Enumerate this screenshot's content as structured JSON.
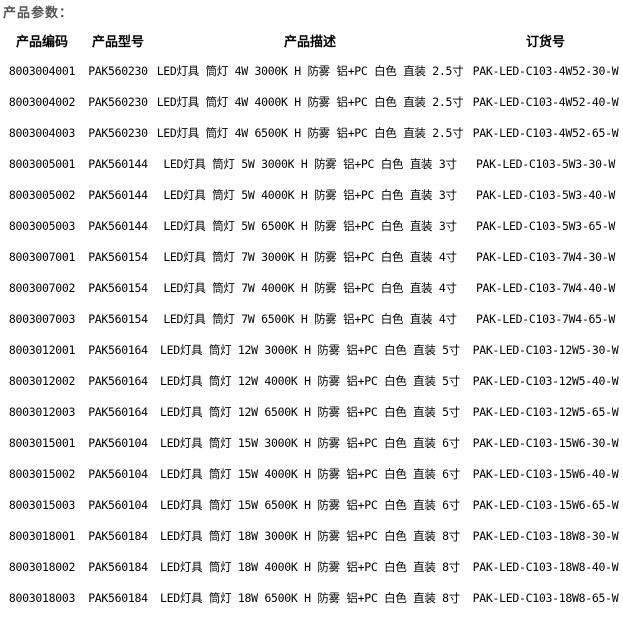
{
  "title": "产品参数：",
  "table": {
    "headers": {
      "code": "产品编码",
      "model": "产品型号",
      "description": "产品描述",
      "order_no": "订货号"
    },
    "rows": [
      {
        "code": "8003004001",
        "model": "PAK560230",
        "description": "LED灯具 筒灯 4W 3000K H 防雾 铝+PC 白色 直装 2.5寸",
        "order_no": "PAK-LED-C103-4W52-30-W"
      },
      {
        "code": "8003004002",
        "model": "PAK560230",
        "description": "LED灯具 筒灯 4W 4000K H 防雾 铝+PC 白色 直装 2.5寸",
        "order_no": "PAK-LED-C103-4W52-40-W"
      },
      {
        "code": "8003004003",
        "model": "PAK560230",
        "description": "LED灯具 筒灯 4W 6500K H 防雾 铝+PC 白色 直装 2.5寸",
        "order_no": "PAK-LED-C103-4W52-65-W"
      },
      {
        "code": "8003005001",
        "model": "PAK560144",
        "description": "LED灯具 筒灯 5W 3000K H 防雾 铝+PC 白色 直装 3寸",
        "order_no": "PAK-LED-C103-5W3-30-W"
      },
      {
        "code": "8003005002",
        "model": "PAK560144",
        "description": "LED灯具 筒灯 5W 4000K H 防雾 铝+PC 白色 直装 3寸",
        "order_no": "PAK-LED-C103-5W3-40-W"
      },
      {
        "code": "8003005003",
        "model": "PAK560144",
        "description": "LED灯具 筒灯 5W 6500K H 防雾 铝+PC 白色 直装 3寸",
        "order_no": "PAK-LED-C103-5W3-65-W"
      },
      {
        "code": "8003007001",
        "model": "PAK560154",
        "description": "LED灯具 筒灯 7W 3000K H 防雾 铝+PC 白色 直装 4寸",
        "order_no": "PAK-LED-C103-7W4-30-W"
      },
      {
        "code": "8003007002",
        "model": "PAK560154",
        "description": "LED灯具 筒灯 7W 4000K H 防雾 铝+PC 白色 直装 4寸",
        "order_no": "PAK-LED-C103-7W4-40-W"
      },
      {
        "code": "8003007003",
        "model": "PAK560154",
        "description": "LED灯具 筒灯 7W 6500K H 防雾 铝+PC 白色 直装 4寸",
        "order_no": "PAK-LED-C103-7W4-65-W"
      },
      {
        "code": "8003012001",
        "model": "PAK560164",
        "description": "LED灯具 筒灯 12W 3000K H 防雾 铝+PC 白色 直装 5寸",
        "order_no": "PAK-LED-C103-12W5-30-W"
      },
      {
        "code": "8003012002",
        "model": "PAK560164",
        "description": "LED灯具 筒灯 12W 4000K H 防雾 铝+PC 白色 直装 5寸",
        "order_no": "PAK-LED-C103-12W5-40-W"
      },
      {
        "code": "8003012003",
        "model": "PAK560164",
        "description": "LED灯具 筒灯 12W 6500K H 防雾 铝+PC 白色 直装 5寸",
        "order_no": "PAK-LED-C103-12W5-65-W"
      },
      {
        "code": "8003015001",
        "model": "PAK560104",
        "description": "LED灯具 筒灯 15W 3000K H 防雾 铝+PC 白色 直装 6寸",
        "order_no": "PAK-LED-C103-15W6-30-W"
      },
      {
        "code": "8003015002",
        "model": "PAK560104",
        "description": "LED灯具 筒灯 15W 4000K H 防雾 铝+PC 白色 直装 6寸",
        "order_no": "PAK-LED-C103-15W6-40-W"
      },
      {
        "code": "8003015003",
        "model": "PAK560104",
        "description": "LED灯具 筒灯 15W 6500K H 防雾 铝+PC 白色 直装 6寸",
        "order_no": "PAK-LED-C103-15W6-65-W"
      },
      {
        "code": "8003018001",
        "model": "PAK560184",
        "description": "LED灯具 筒灯 18W 3000K H 防雾 铝+PC 白色 直装 8寸",
        "order_no": "PAK-LED-C103-18W8-30-W"
      },
      {
        "code": "8003018002",
        "model": "PAK560184",
        "description": "LED灯具 筒灯 18W 4000K H 防雾 铝+PC 白色 直装 8寸",
        "order_no": "PAK-LED-C103-18W8-40-W"
      },
      {
        "code": "8003018003",
        "model": "PAK560184",
        "description": "LED灯具 筒灯 18W 6500K H 防雾 铝+PC 白色 直装 8寸",
        "order_no": "PAK-LED-C103-18W8-65-W"
      }
    ]
  }
}
